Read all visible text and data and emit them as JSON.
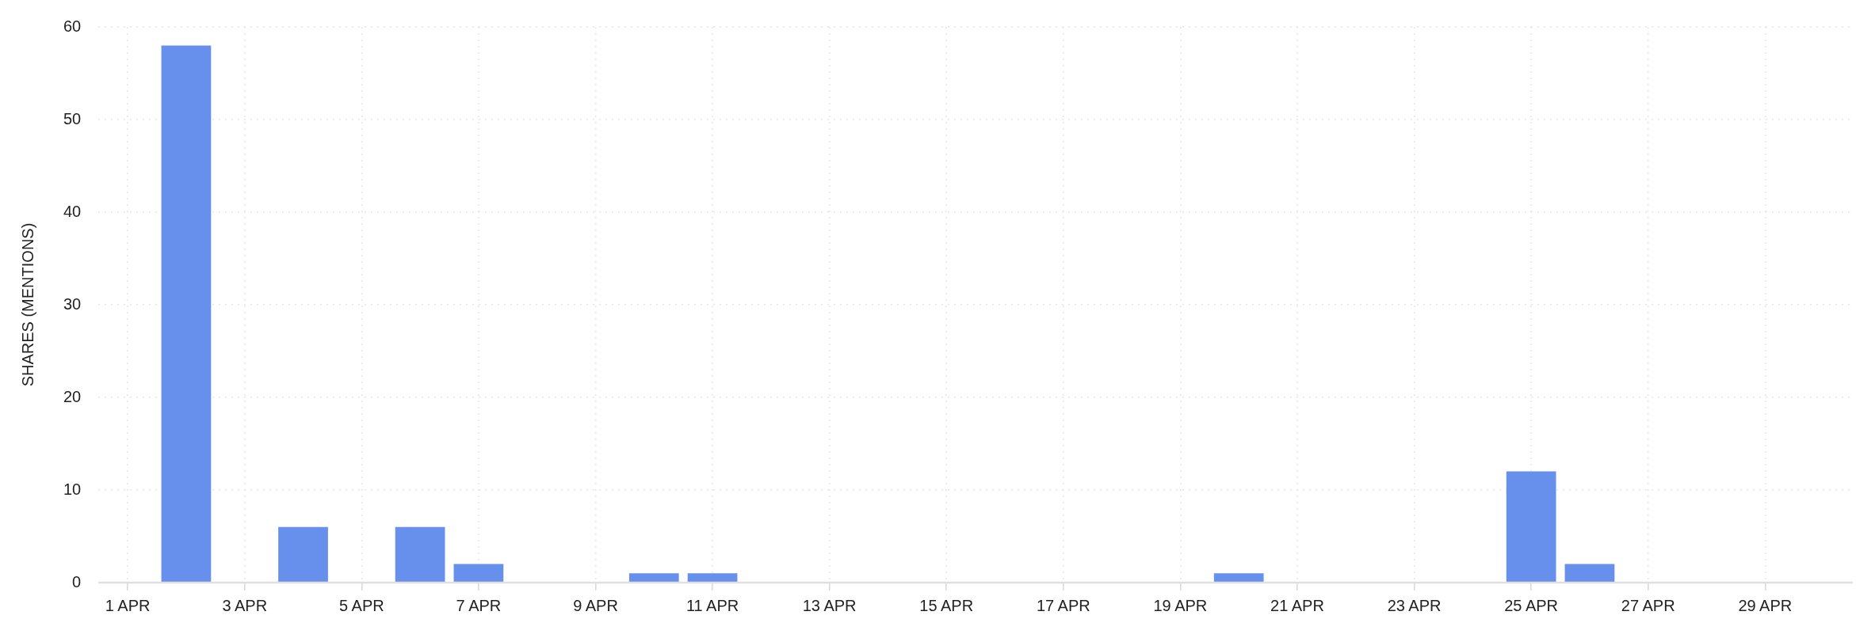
{
  "chart_data": {
    "type": "bar",
    "ylabel": "SHARES (MENTIONS)",
    "categories": [
      "1 APR",
      null,
      "3 APR",
      null,
      "5 APR",
      null,
      "7 APR",
      null,
      "9 APR",
      null,
      "11 APR",
      null,
      "13 APR",
      null,
      "15 APR",
      null,
      "17 APR",
      null,
      "19 APR",
      null,
      "21 APR",
      null,
      "23 APR",
      null,
      "25 APR",
      null,
      "27 APR",
      null,
      "29 APR",
      null
    ],
    "values": [
      0,
      58,
      0,
      6,
      0,
      6,
      2,
      0,
      0,
      1,
      1,
      0,
      0,
      0,
      0,
      0,
      0,
      0,
      0,
      1,
      0,
      0,
      0,
      0,
      12,
      2,
      0,
      0,
      0,
      0
    ],
    "color": "#6690eb",
    "ylim": [
      0,
      60
    ],
    "yticks": [
      0,
      10,
      20,
      30,
      40,
      50,
      60
    ],
    "grid": true,
    "legend": false
  }
}
